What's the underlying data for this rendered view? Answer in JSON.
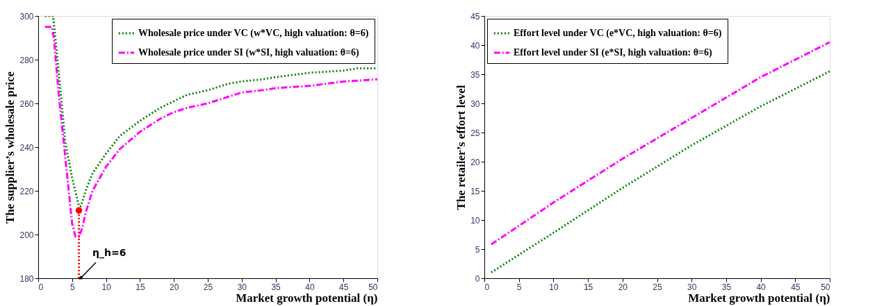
{
  "chart_data": [
    {
      "type": "line",
      "xlabel": "Market growth potential (η)",
      "ylabel": "The supplier’s wholesale price",
      "xlim": [
        0,
        50
      ],
      "ylim": [
        180,
        300
      ],
      "xticks": [
        0,
        5,
        10,
        15,
        20,
        25,
        30,
        35,
        40,
        45,
        50
      ],
      "yticks": [
        180,
        200,
        220,
        240,
        260,
        280,
        300
      ],
      "grid": false,
      "legend": "top right",
      "annotations": [
        {
          "text": "η_h=6",
          "x": 6,
          "y": 180
        }
      ],
      "series": [
        {
          "name": "Wholesale price under VC (w*VC, high valuation: θ=6)",
          "color": "#008000",
          "line_style": "dotted",
          "x": [
            1,
            2,
            2.2,
            3,
            4,
            5,
            6,
            6.3,
            7,
            8,
            10,
            12,
            15,
            18,
            20,
            22,
            25,
            28,
            30,
            33,
            35,
            40,
            45,
            47,
            50
          ],
          "values": [
            300,
            300,
            300,
            275,
            242,
            226,
            213,
            213,
            220,
            228,
            237,
            245,
            252,
            258,
            261,
            264,
            266,
            269,
            270,
            271,
            272,
            274,
            275,
            276,
            276
          ]
        },
        {
          "name": "Wholesale price under SI (w*SI, high valuation: θ=6)",
          "color": "#ff00ff",
          "line_style": "dashed",
          "x": [
            1,
            2,
            2.3,
            3,
            4,
            5,
            5.5,
            6,
            6.5,
            7,
            8,
            10,
            12,
            15,
            18,
            20,
            22,
            25,
            28,
            30,
            33,
            35,
            40,
            45,
            50
          ],
          "values": [
            295,
            295,
            290,
            265,
            235,
            205,
            199,
            199,
            203,
            210,
            220,
            231,
            239,
            247,
            253,
            256,
            258,
            260,
            263,
            265,
            266,
            267,
            268,
            270,
            271
          ]
        },
        {
          "type": "line",
          "color": "#ff0000",
          "line_style": "dotted",
          "x": [
            6,
            6
          ],
          "values": [
            180,
            211
          ]
        },
        {
          "type": "scatter",
          "color": "#ff0000",
          "marker": "circle",
          "x": [
            6
          ],
          "values": [
            211
          ]
        }
      ]
    },
    {
      "type": "line",
      "xlabel": "Market growth potential (η)",
      "ylabel": "The retailer’s effort level",
      "xlim": [
        0,
        50
      ],
      "ylim": [
        0,
        45
      ],
      "xticks": [
        0,
        5,
        10,
        15,
        20,
        25,
        30,
        35,
        40,
        45,
        50
      ],
      "yticks": [
        0,
        5,
        10,
        15,
        20,
        25,
        30,
        35,
        40,
        45
      ],
      "grid": false,
      "legend": "top left",
      "series": [
        {
          "name": "Effort level under VC (e*VC, high valuation: θ=6)",
          "color": "#008000",
          "line_style": "dotted",
          "x": [
            1,
            10,
            20,
            30,
            40,
            50
          ],
          "values": [
            1,
            7.8,
            15.5,
            22.8,
            29.5,
            35.5
          ]
        },
        {
          "name": "Effort level under SI (e*SI, high valuation: θ=6)",
          "color": "#ff00ff",
          "line_style": "dashed",
          "x": [
            1,
            10,
            20,
            30,
            40,
            50
          ],
          "values": [
            5.8,
            13,
            20.5,
            27.5,
            34.5,
            40.5
          ]
        }
      ]
    }
  ]
}
